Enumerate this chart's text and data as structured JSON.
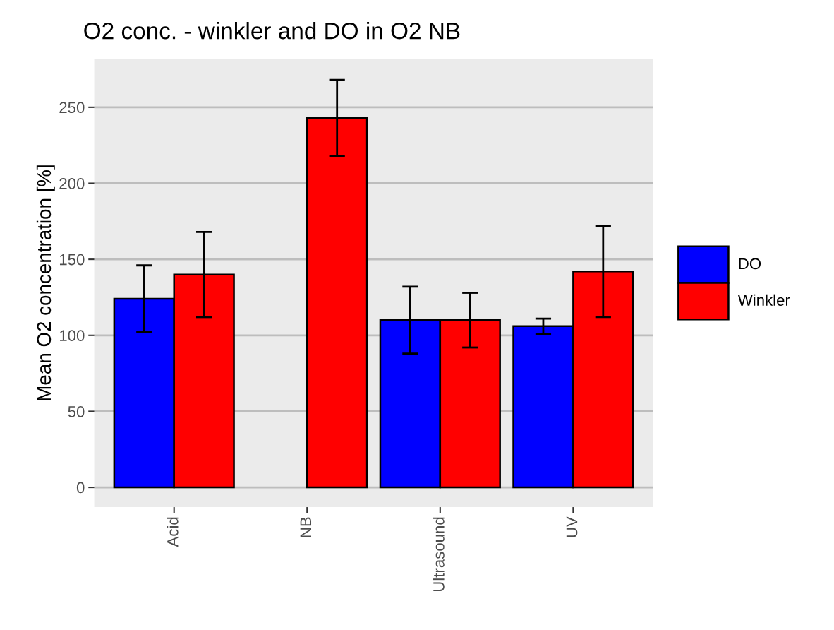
{
  "chart_data": {
    "type": "bar",
    "title": "O2 conc. - winkler and DO in O2 NB",
    "ylabel": "Mean O2 concentration [%]",
    "categories": [
      "Acid",
      "NB",
      "Ultrasound",
      "UV"
    ],
    "series": [
      {
        "name": "DO",
        "color": "#0000ff",
        "values": [
          124,
          null,
          110,
          106
        ],
        "errors": [
          22,
          null,
          22,
          5
        ]
      },
      {
        "name": "Winkler",
        "color": "#ff0000",
        "values": [
          140,
          243,
          110,
          142
        ],
        "errors": [
          28,
          25,
          18,
          30
        ]
      }
    ],
    "ylim": [
      -13,
      282
    ],
    "yticks": [
      0,
      50,
      100,
      150,
      200,
      250
    ],
    "grid": "y",
    "legend": "right"
  }
}
